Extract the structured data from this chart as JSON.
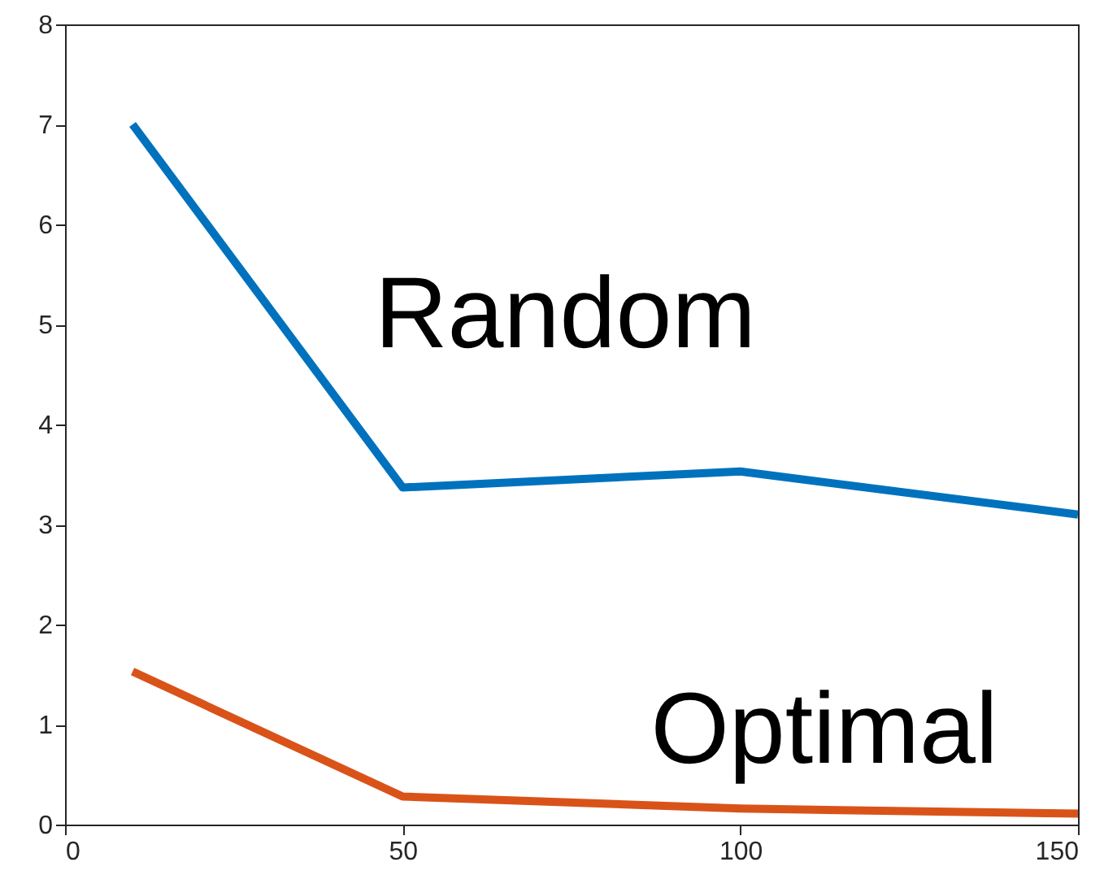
{
  "chart_data": {
    "type": "line",
    "x": [
      10,
      50,
      100,
      150
    ],
    "series": [
      {
        "name": "Random",
        "color": "#0072bd",
        "values": [
          7,
          3.37,
          3.53,
          3.1
        ]
      },
      {
        "name": "Optimal",
        "color": "#d95319",
        "values": [
          1.53,
          0.28,
          0.16,
          0.11
        ]
      }
    ],
    "xlim": [
      0,
      150
    ],
    "xticks": [
      0,
      50,
      100,
      150
    ],
    "ylim": [
      0,
      8
    ],
    "yticks": [
      0,
      1,
      2,
      3,
      4,
      5,
      6,
      7,
      8
    ],
    "grid": false,
    "line_style": "solid",
    "marker": "none"
  }
}
